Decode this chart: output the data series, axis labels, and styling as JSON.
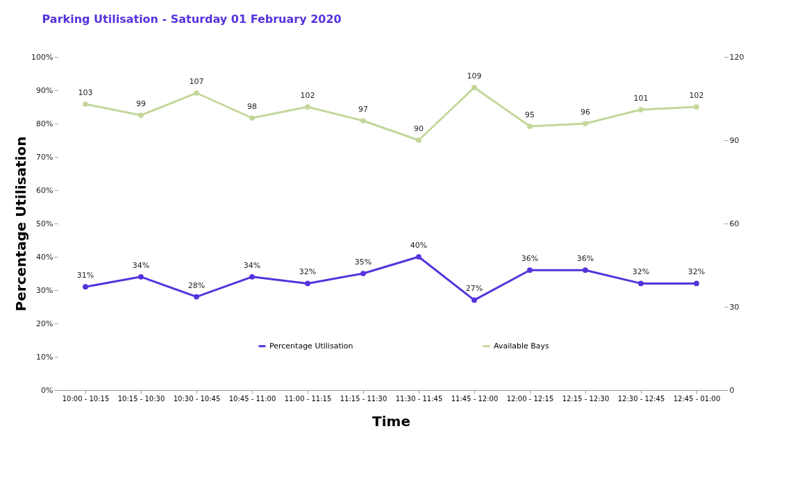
{
  "chart_data": {
    "type": "line",
    "title": "Parking Utilisation - Saturday 01 February 2020",
    "xlabel": "Time",
    "ylabel": "Percentage Utilisation",
    "categories": [
      "10:00 - 10:15",
      "10:15 - 10:30",
      "10:30 - 10:45",
      "10:45 - 11:00",
      "11:00 - 11:15",
      "11:15 - 11:30",
      "11:30 - 11:45",
      "11:45 - 12:00",
      "12:00 - 12:15",
      "12:15 - 12:30",
      "12:30 - 12:45",
      "12:45 - 01:00"
    ],
    "series": [
      {
        "name": "Percentage Utilisation",
        "color": "#5533dd",
        "values": [
          31,
          34,
          28,
          34,
          32,
          35,
          40,
          27,
          36,
          36,
          32,
          32
        ],
        "value_labels": [
          "31%",
          "34%",
          "28%",
          "34%",
          "32%",
          "35%",
          "40%",
          "27%",
          "36%",
          "36%",
          "32%",
          "32%"
        ]
      },
      {
        "name": "Available Bays",
        "color": "#c4d79b",
        "axis": "y2",
        "values": [
          103,
          99,
          107,
          98,
          102,
          97,
          90,
          109,
          95,
          96,
          101,
          102
        ],
        "data_labels": true
      }
    ],
    "ylim": [
      0,
      100
    ],
    "yticks": [
      {
        "value": 0,
        "label": "0%"
      },
      {
        "value": 10,
        "label": "10%"
      },
      {
        "value": 20,
        "label": "20%"
      },
      {
        "value": 30,
        "label": "30%"
      },
      {
        "value": 40,
        "label": "40%"
      },
      {
        "value": 50,
        "label": "50%"
      },
      {
        "value": 60,
        "label": "60%"
      },
      {
        "value": 70,
        "label": "70%"
      },
      {
        "value": 80,
        "label": "80%"
      },
      {
        "value": 90,
        "label": "90%"
      },
      {
        "value": 100,
        "label": "100%"
      }
    ],
    "y2lim": [
      0,
      120
    ],
    "y2ticks": [
      0,
      30,
      60,
      90,
      120
    ],
    "legend": "bottom",
    "grid": false,
    "marker": "circle",
    "line_style": "solid"
  }
}
